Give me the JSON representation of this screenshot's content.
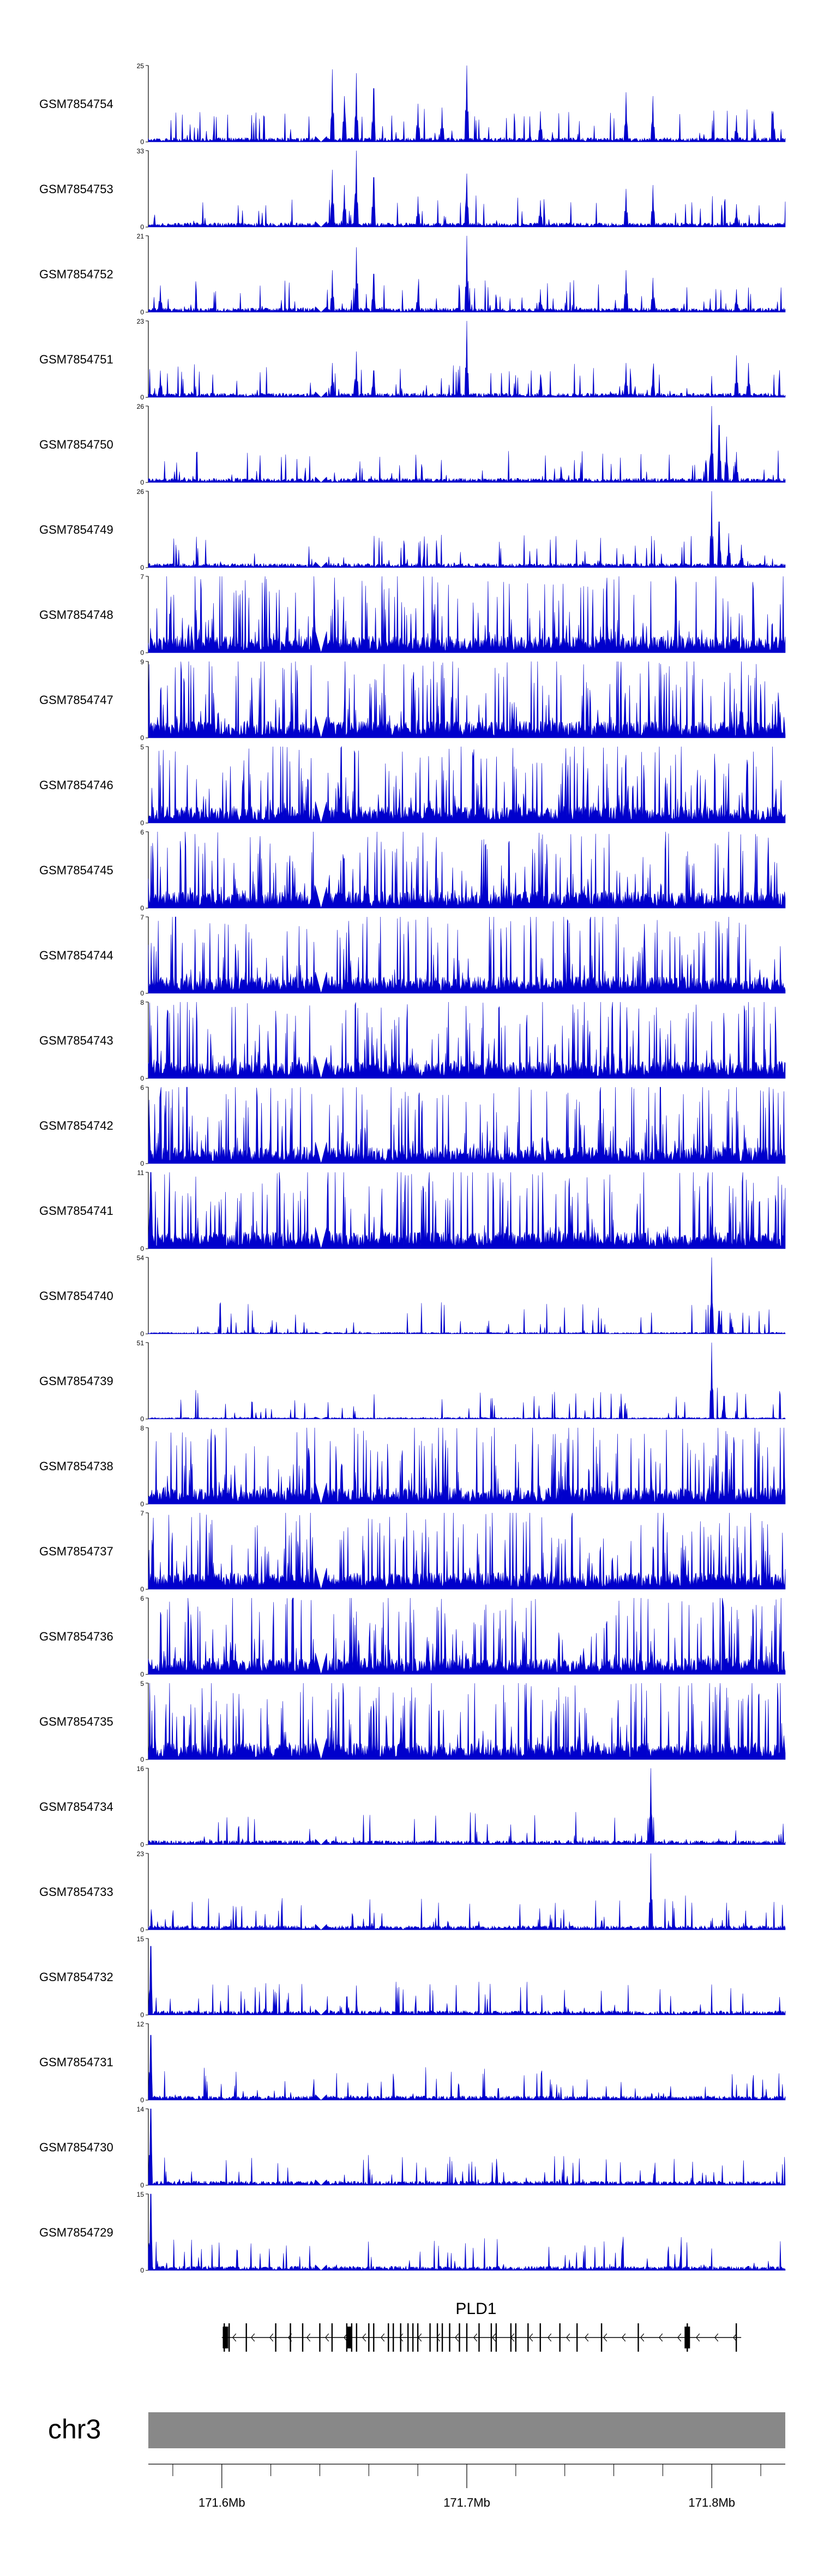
{
  "colors": {
    "signal": "#0000cc",
    "axis": "#000000",
    "chromosome": "#888888",
    "gene": "#000000"
  },
  "chart_data": {
    "type": "area",
    "description_units": "genomic position (Mb) vs read coverage",
    "xlim": [
      171.57,
      171.83
    ],
    "gap": [
      171.638,
      171.643
    ],
    "tracks": [
      {
        "name": "GSM7854754",
        "ymax": "25",
        "peaks": [
          [
            171.645,
            0.95
          ],
          [
            171.65,
            0.6
          ],
          [
            171.655,
            0.9
          ],
          [
            171.662,
            0.7
          ],
          [
            171.68,
            0.5
          ],
          [
            171.69,
            0.45
          ],
          [
            171.7,
            1.0
          ],
          [
            171.73,
            0.4
          ],
          [
            171.765,
            0.65
          ],
          [
            171.776,
            0.6
          ],
          [
            171.81,
            0.35
          ],
          [
            171.825,
            0.4
          ]
        ]
      },
      {
        "name": "GSM7854753",
        "ymax": "33",
        "peaks": [
          [
            171.645,
            0.75
          ],
          [
            171.65,
            0.55
          ],
          [
            171.655,
            1.0
          ],
          [
            171.662,
            0.65
          ],
          [
            171.68,
            0.4
          ],
          [
            171.7,
            0.7
          ],
          [
            171.73,
            0.35
          ],
          [
            171.765,
            0.5
          ],
          [
            171.776,
            0.55
          ],
          [
            171.81,
            0.3
          ]
        ]
      },
      {
        "name": "GSM7854752",
        "ymax": "21",
        "peaks": [
          [
            171.575,
            0.35
          ],
          [
            171.645,
            0.55
          ],
          [
            171.655,
            0.85
          ],
          [
            171.662,
            0.5
          ],
          [
            171.68,
            0.3
          ],
          [
            171.7,
            1.0
          ],
          [
            171.73,
            0.3
          ],
          [
            171.765,
            0.55
          ],
          [
            171.776,
            0.45
          ],
          [
            171.81,
            0.3
          ]
        ]
      },
      {
        "name": "GSM7854751",
        "ymax": "23",
        "peaks": [
          [
            171.575,
            0.35
          ],
          [
            171.645,
            0.45
          ],
          [
            171.655,
            0.6
          ],
          [
            171.662,
            0.35
          ],
          [
            171.7,
            1.0
          ],
          [
            171.73,
            0.3
          ],
          [
            171.765,
            0.45
          ],
          [
            171.776,
            0.35
          ],
          [
            171.81,
            0.55
          ],
          [
            171.815,
            0.45
          ]
        ]
      },
      {
        "name": "GSM7854750",
        "ymax": "26",
        "peaks": [
          [
            171.8,
            1.0
          ],
          [
            171.803,
            0.75
          ],
          [
            171.806,
            0.6
          ],
          [
            171.81,
            0.4
          ]
        ]
      },
      {
        "name": "GSM7854749",
        "ymax": "26",
        "peaks": [
          [
            171.8,
            1.0
          ],
          [
            171.803,
            0.6
          ],
          [
            171.807,
            0.45
          ],
          [
            171.812,
            0.3
          ]
        ]
      },
      {
        "name": "GSM7854748",
        "ymax": "7",
        "peaks": []
      },
      {
        "name": "GSM7854747",
        "ymax": "9",
        "peaks": [
          [
            171.812,
            1.0
          ]
        ]
      },
      {
        "name": "GSM7854746",
        "ymax": "5",
        "peaks": []
      },
      {
        "name": "GSM7854745",
        "ymax": "6",
        "peaks": []
      },
      {
        "name": "GSM7854744",
        "ymax": "7",
        "peaks": []
      },
      {
        "name": "GSM7854743",
        "ymax": "8",
        "peaks": []
      },
      {
        "name": "GSM7854742",
        "ymax": "6",
        "peaks": []
      },
      {
        "name": "GSM7854741",
        "ymax": "11",
        "peaks": [
          [
            171.571,
            1.0
          ]
        ]
      },
      {
        "name": "GSM7854740",
        "ymax": "54",
        "peaks": [
          [
            171.8,
            1.0
          ],
          [
            171.803,
            0.3
          ],
          [
            171.808,
            0.2
          ]
        ]
      },
      {
        "name": "GSM7854739",
        "ymax": "51",
        "peaks": [
          [
            171.8,
            1.0
          ],
          [
            171.805,
            0.3
          ]
        ]
      },
      {
        "name": "GSM7854738",
        "ymax": "8",
        "peaks": []
      },
      {
        "name": "GSM7854737",
        "ymax": "7",
        "peaks": []
      },
      {
        "name": "GSM7854736",
        "ymax": "6",
        "peaks": []
      },
      {
        "name": "GSM7854735",
        "ymax": "5",
        "peaks": []
      },
      {
        "name": "GSM7854734",
        "ymax": "16",
        "peaks": [
          [
            171.775,
            1.0
          ]
        ]
      },
      {
        "name": "GSM7854733",
        "ymax": "23",
        "peaks": [
          [
            171.775,
            1.0
          ]
        ]
      },
      {
        "name": "GSM7854732",
        "ymax": "15",
        "peaks": [
          [
            171.571,
            0.9
          ]
        ]
      },
      {
        "name": "GSM7854731",
        "ymax": "12",
        "peaks": [
          [
            171.571,
            0.85
          ]
        ]
      },
      {
        "name": "GSM7854730",
        "ymax": "14",
        "peaks": [
          [
            171.571,
            1.0
          ]
        ]
      },
      {
        "name": "GSM7854729",
        "ymax": "15",
        "peaks": [
          [
            171.571,
            1.0
          ]
        ]
      }
    ],
    "gene": {
      "name": "PLD1",
      "strand": "-",
      "start": 171.6,
      "end": 171.812,
      "exons": [
        171.601,
        171.603,
        171.61,
        171.622,
        171.628,
        171.633,
        171.64,
        171.645,
        171.651,
        171.653,
        171.655,
        171.66,
        171.662,
        171.668,
        171.67,
        171.673,
        171.676,
        171.678,
        171.68,
        171.685,
        171.688,
        171.69,
        171.693,
        171.697,
        171.7,
        171.705,
        171.71,
        171.712,
        171.718,
        171.72,
        171.725,
        171.73,
        171.738,
        171.745,
        171.755,
        171.77,
        171.79,
        171.81
      ],
      "thick_exons": [
        171.6015,
        171.652,
        171.79
      ]
    },
    "chromosome": "chr3",
    "ticks": [
      {
        "pos": 171.6,
        "label": "171.6Mb"
      },
      {
        "pos": 171.7,
        "label": "171.7Mb"
      },
      {
        "pos": 171.8,
        "label": "171.8Mb"
      }
    ],
    "minor_ticks": [
      171.58,
      171.62,
      171.64,
      171.66,
      171.68,
      171.72,
      171.74,
      171.76,
      171.78,
      171.82
    ]
  }
}
